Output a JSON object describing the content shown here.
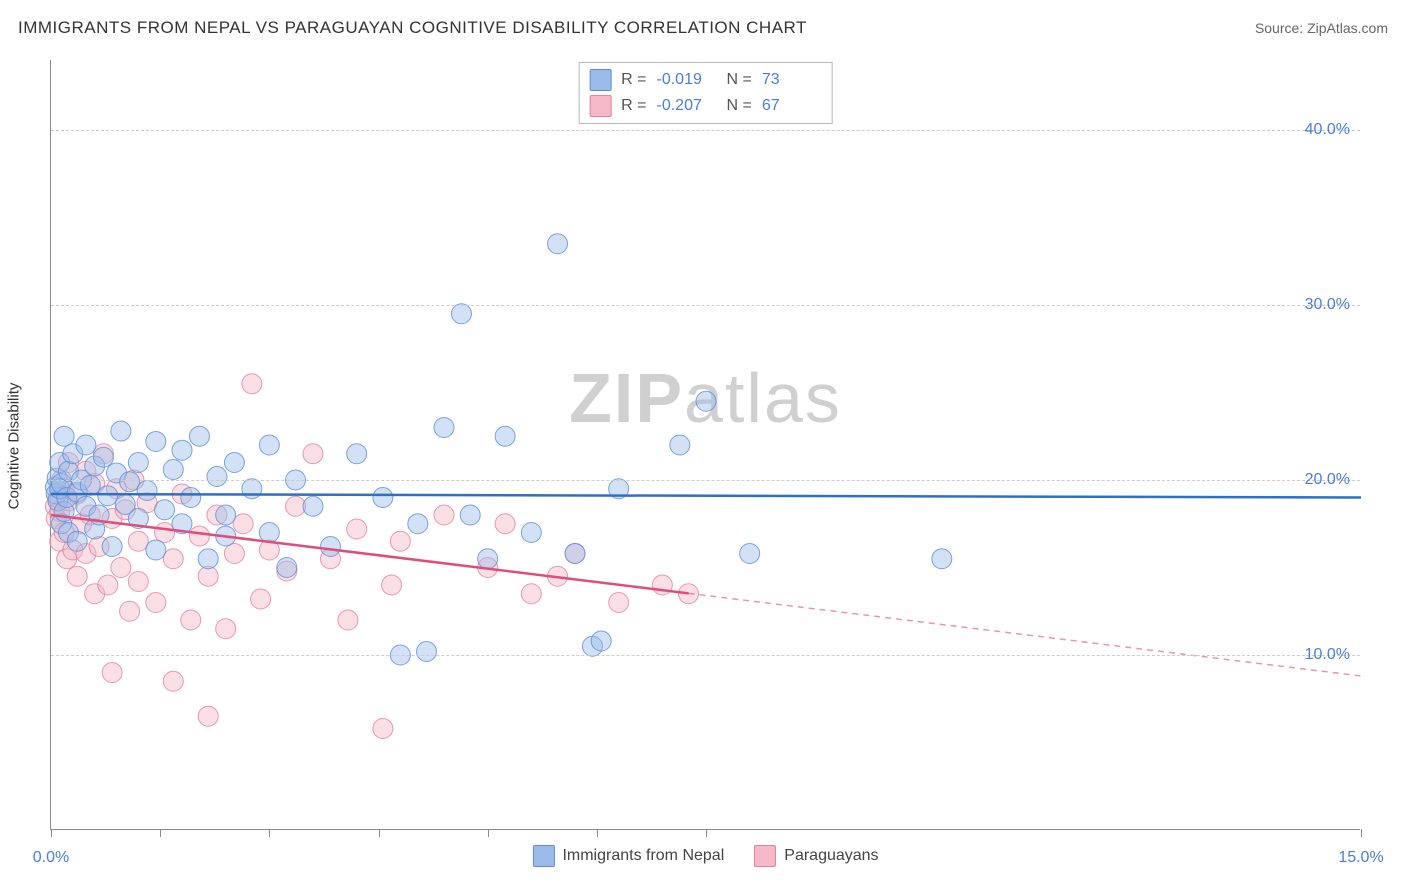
{
  "title": "IMMIGRANTS FROM NEPAL VS PARAGUAYAN COGNITIVE DISABILITY CORRELATION CHART",
  "source_label": "Source: ",
  "source_name": "ZipAtlas.com",
  "ylabel": "Cognitive Disability",
  "watermark_bold": "ZIP",
  "watermark_rest": "atlas",
  "chart": {
    "type": "scatter",
    "xlim": [
      0,
      15
    ],
    "ylim": [
      0,
      44
    ],
    "x_ticks": [
      0,
      1.25,
      2.5,
      3.75,
      5,
      6.25,
      7.5,
      15
    ],
    "x_tick_labels": {
      "0": "0.0%",
      "15": "15.0%"
    },
    "y_gridlines": [
      10,
      20,
      30,
      40
    ],
    "y_tick_labels": {
      "10": "10.0%",
      "20": "20.0%",
      "30": "30.0%",
      "40": "40.0%"
    },
    "background_color": "#ffffff",
    "grid_color": "#cccccc",
    "axis_color": "#888888",
    "marker_radius": 10,
    "marker_opacity": 0.45,
    "series": [
      {
        "name": "Immigrants from Nepal",
        "color_fill": "#9bbce8",
        "color_stroke": "#5a8fd6",
        "line_color": "#2e6fc9",
        "r_label": "R =",
        "r_value": "-0.019",
        "n_label": "N =",
        "n_value": "73",
        "regression": {
          "y_at_x0": 19.2,
          "y_at_xmax": 19.0,
          "solid_until_x": 15
        },
        "points": [
          [
            0.05,
            19.6
          ],
          [
            0.06,
            19.2
          ],
          [
            0.07,
            20.1
          ],
          [
            0.08,
            18.8
          ],
          [
            0.1,
            19.5
          ],
          [
            0.1,
            21.0
          ],
          [
            0.12,
            17.5
          ],
          [
            0.12,
            19.8
          ],
          [
            0.15,
            22.5
          ],
          [
            0.15,
            18.2
          ],
          [
            0.18,
            19.0
          ],
          [
            0.2,
            20.5
          ],
          [
            0.2,
            17.0
          ],
          [
            0.25,
            21.5
          ],
          [
            0.3,
            19.3
          ],
          [
            0.3,
            16.5
          ],
          [
            0.35,
            20.0
          ],
          [
            0.4,
            18.5
          ],
          [
            0.4,
            22.0
          ],
          [
            0.45,
            19.7
          ],
          [
            0.5,
            17.2
          ],
          [
            0.5,
            20.8
          ],
          [
            0.55,
            18.0
          ],
          [
            0.6,
            21.3
          ],
          [
            0.65,
            19.1
          ],
          [
            0.7,
            16.2
          ],
          [
            0.75,
            20.4
          ],
          [
            0.8,
            22.8
          ],
          [
            0.85,
            18.6
          ],
          [
            0.9,
            19.9
          ],
          [
            1.0,
            17.8
          ],
          [
            1.0,
            21.0
          ],
          [
            1.1,
            19.4
          ],
          [
            1.2,
            16.0
          ],
          [
            1.2,
            22.2
          ],
          [
            1.3,
            18.3
          ],
          [
            1.4,
            20.6
          ],
          [
            1.5,
            17.5
          ],
          [
            1.5,
            21.7
          ],
          [
            1.6,
            19.0
          ],
          [
            1.7,
            22.5
          ],
          [
            1.8,
            15.5
          ],
          [
            1.9,
            20.2
          ],
          [
            2.0,
            18.0
          ],
          [
            2.0,
            16.8
          ],
          [
            2.1,
            21.0
          ],
          [
            2.3,
            19.5
          ],
          [
            2.5,
            17.0
          ],
          [
            2.5,
            22.0
          ],
          [
            2.7,
            15.0
          ],
          [
            2.8,
            20.0
          ],
          [
            3.0,
            18.5
          ],
          [
            3.2,
            16.2
          ],
          [
            3.5,
            21.5
          ],
          [
            3.8,
            19.0
          ],
          [
            4.0,
            10.0
          ],
          [
            4.2,
            17.5
          ],
          [
            4.3,
            10.2
          ],
          [
            4.5,
            23.0
          ],
          [
            4.7,
            29.5
          ],
          [
            4.8,
            18.0
          ],
          [
            5.0,
            15.5
          ],
          [
            5.2,
            22.5
          ],
          [
            5.5,
            17.0
          ],
          [
            5.8,
            33.5
          ],
          [
            6.0,
            15.8
          ],
          [
            6.2,
            10.5
          ],
          [
            6.3,
            10.8
          ],
          [
            6.5,
            19.5
          ],
          [
            7.2,
            22.0
          ],
          [
            7.5,
            24.5
          ],
          [
            8.0,
            15.8
          ],
          [
            10.2,
            15.5
          ]
        ]
      },
      {
        "name": "Paraguayans",
        "color_fill": "#f4b8c6",
        "color_stroke": "#e67fa0",
        "line_color": "#e14d7b",
        "r_label": "R =",
        "r_value": "-0.207",
        "n_label": "N =",
        "n_value": "67",
        "regression": {
          "y_at_x0": 18.0,
          "y_at_xmax": 8.8,
          "solid_until_x": 7.3
        },
        "points": [
          [
            0.05,
            18.5
          ],
          [
            0.06,
            17.8
          ],
          [
            0.08,
            19.0
          ],
          [
            0.1,
            16.5
          ],
          [
            0.1,
            18.2
          ],
          [
            0.12,
            20.0
          ],
          [
            0.15,
            17.0
          ],
          [
            0.15,
            19.5
          ],
          [
            0.18,
            15.5
          ],
          [
            0.2,
            18.8
          ],
          [
            0.2,
            21.0
          ],
          [
            0.25,
            16.0
          ],
          [
            0.3,
            19.2
          ],
          [
            0.3,
            14.5
          ],
          [
            0.35,
            17.5
          ],
          [
            0.4,
            20.5
          ],
          [
            0.4,
            15.8
          ],
          [
            0.45,
            18.0
          ],
          [
            0.5,
            13.5
          ],
          [
            0.5,
            19.8
          ],
          [
            0.55,
            16.2
          ],
          [
            0.6,
            21.5
          ],
          [
            0.65,
            14.0
          ],
          [
            0.7,
            17.8
          ],
          [
            0.7,
            9.0
          ],
          [
            0.75,
            19.5
          ],
          [
            0.8,
            15.0
          ],
          [
            0.85,
            18.3
          ],
          [
            0.9,
            12.5
          ],
          [
            0.95,
            20.0
          ],
          [
            1.0,
            16.5
          ],
          [
            1.0,
            14.2
          ],
          [
            1.1,
            18.7
          ],
          [
            1.2,
            13.0
          ],
          [
            1.3,
            17.0
          ],
          [
            1.4,
            15.5
          ],
          [
            1.4,
            8.5
          ],
          [
            1.5,
            19.2
          ],
          [
            1.6,
            12.0
          ],
          [
            1.7,
            16.8
          ],
          [
            1.8,
            6.5
          ],
          [
            1.8,
            14.5
          ],
          [
            1.9,
            18.0
          ],
          [
            2.0,
            11.5
          ],
          [
            2.1,
            15.8
          ],
          [
            2.2,
            17.5
          ],
          [
            2.3,
            25.5
          ],
          [
            2.4,
            13.2
          ],
          [
            2.5,
            16.0
          ],
          [
            2.7,
            14.8
          ],
          [
            2.8,
            18.5
          ],
          [
            3.0,
            21.5
          ],
          [
            3.2,
            15.5
          ],
          [
            3.4,
            12.0
          ],
          [
            3.5,
            17.2
          ],
          [
            3.8,
            5.8
          ],
          [
            3.9,
            14.0
          ],
          [
            4.0,
            16.5
          ],
          [
            4.5,
            18.0
          ],
          [
            5.0,
            15.0
          ],
          [
            5.2,
            17.5
          ],
          [
            5.5,
            13.5
          ],
          [
            5.8,
            14.5
          ],
          [
            6.0,
            15.8
          ],
          [
            6.5,
            13.0
          ],
          [
            7.0,
            14.0
          ],
          [
            7.3,
            13.5
          ]
        ]
      }
    ]
  }
}
